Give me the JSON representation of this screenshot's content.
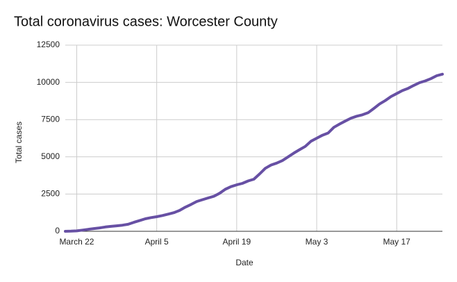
{
  "chart_data": {
    "type": "line",
    "title": "Total coronavirus cases: Worcester County",
    "x_label": "Date",
    "y_label": "Total cases",
    "categories": [
      null,
      null,
      "March 22",
      null,
      null,
      null,
      null,
      null,
      null,
      null,
      null,
      null,
      null,
      null,
      null,
      null,
      "April 5",
      null,
      null,
      null,
      null,
      null,
      null,
      null,
      null,
      null,
      null,
      null,
      null,
      null,
      "April 19",
      null,
      null,
      null,
      null,
      null,
      null,
      null,
      null,
      null,
      null,
      null,
      null,
      null,
      "May 3",
      null,
      null,
      null,
      null,
      null,
      null,
      null,
      null,
      null,
      null,
      null,
      null,
      null,
      "May 17",
      null,
      null,
      null,
      null,
      null,
      null,
      null,
      null
    ],
    "series": [
      {
        "name": "Total cases",
        "color": "#6750a4",
        "values": [
          0,
          10,
          30,
          80,
          130,
          180,
          230,
          290,
          330,
          370,
          410,
          470,
          600,
          720,
          840,
          920,
          980,
          1060,
          1150,
          1250,
          1400,
          1620,
          1800,
          2000,
          2120,
          2240,
          2350,
          2550,
          2820,
          3000,
          3120,
          3220,
          3380,
          3500,
          3850,
          4230,
          4450,
          4580,
          4750,
          5000,
          5250,
          5480,
          5700,
          6050,
          6250,
          6450,
          6600,
          6980,
          7200,
          7400,
          7600,
          7730,
          7820,
          7960,
          8250,
          8550,
          8780,
          9050,
          9250,
          9450,
          9600,
          9800,
          9980,
          10100,
          10250,
          10450,
          10550
        ]
      }
    ],
    "ylim": [
      0,
      12500
    ],
    "yticks": [
      0,
      2500,
      5000,
      7500,
      10000,
      12500
    ],
    "grid": true
  }
}
